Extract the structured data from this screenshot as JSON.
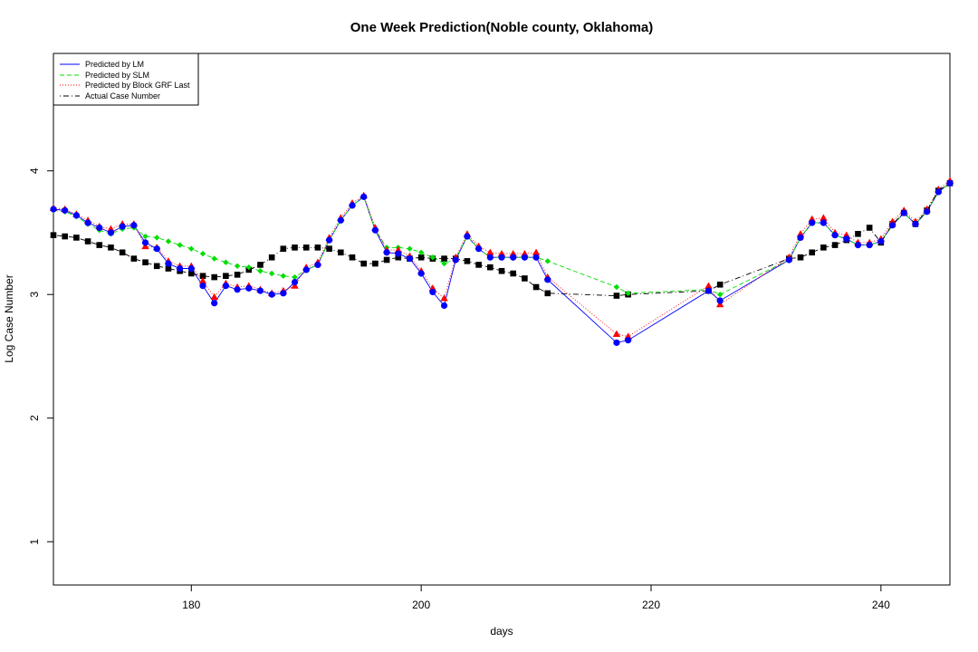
{
  "chart_data": {
    "type": "line",
    "title": "One Week Prediction(Noble county, Oklahoma)",
    "xlabel": "days",
    "ylabel": "Log Case Number",
    "xlim": [
      168,
      246
    ],
    "ylim": [
      0.65,
      4.95
    ],
    "xticks": [
      180,
      200,
      220,
      240
    ],
    "yticks": [
      1,
      2,
      3,
      4
    ],
    "grid": false,
    "legend_position": "top-left",
    "colors": {
      "lm": "#0000ff",
      "slm": "#00dd00",
      "grf": "#ff0000",
      "actual": "#000000"
    },
    "series": [
      {
        "name": "Predicted by LM",
        "style": "solid",
        "marker": "circle",
        "x": [
          168,
          169,
          170,
          171,
          172,
          173,
          174,
          175,
          176,
          177,
          178,
          179,
          180,
          181,
          182,
          183,
          184,
          185,
          186,
          187,
          188,
          189,
          190,
          191,
          192,
          193,
          194,
          195,
          196,
          197,
          198,
          199,
          200,
          201,
          202,
          203,
          204,
          205,
          206,
          207,
          208,
          209,
          210,
          211,
          217,
          218,
          225,
          226,
          232,
          233,
          234,
          235,
          236,
          237,
          238,
          239,
          240,
          241,
          242,
          243,
          244,
          245,
          246
        ],
        "values": [
          3.69,
          3.68,
          3.64,
          3.58,
          3.54,
          3.5,
          3.55,
          3.56,
          3.42,
          3.37,
          3.25,
          3.21,
          3.21,
          3.07,
          2.93,
          3.07,
          3.04,
          3.05,
          3.03,
          3.0,
          3.01,
          3.1,
          3.2,
          3.24,
          3.44,
          3.6,
          3.72,
          3.79,
          3.52,
          3.34,
          3.33,
          3.29,
          3.17,
          3.02,
          2.91,
          3.28,
          3.47,
          3.37,
          3.3,
          3.3,
          3.3,
          3.3,
          3.3,
          3.12,
          2.61,
          2.63,
          3.03,
          2.95,
          3.28,
          3.46,
          3.58,
          3.58,
          3.48,
          3.45,
          3.4,
          3.4,
          3.43,
          3.56,
          3.66,
          3.57,
          3.67,
          3.83,
          3.9
        ]
      },
      {
        "name": "Predicted by SLM",
        "style": "dashed",
        "marker": "diamond",
        "x": [
          168,
          169,
          170,
          171,
          172,
          173,
          174,
          175,
          176,
          177,
          178,
          179,
          180,
          181,
          182,
          183,
          184,
          185,
          186,
          187,
          188,
          189,
          190,
          191,
          192,
          193,
          194,
          195,
          196,
          197,
          198,
          199,
          200,
          201,
          202,
          203,
          204,
          205,
          206,
          207,
          208,
          209,
          210,
          211,
          217,
          218,
          225,
          226,
          232,
          233,
          234,
          235,
          236,
          237,
          238,
          239,
          240,
          241,
          242,
          243,
          244,
          245,
          246
        ],
        "values": [
          3.68,
          3.67,
          3.63,
          3.57,
          3.52,
          3.49,
          3.53,
          3.54,
          3.47,
          3.46,
          3.43,
          3.4,
          3.37,
          3.33,
          3.29,
          3.26,
          3.23,
          3.22,
          3.19,
          3.17,
          3.15,
          3.14,
          3.2,
          3.24,
          3.44,
          3.6,
          3.72,
          3.79,
          3.52,
          3.38,
          3.38,
          3.37,
          3.34,
          3.3,
          3.25,
          3.29,
          3.47,
          3.37,
          3.3,
          3.3,
          3.3,
          3.3,
          3.3,
          3.27,
          3.06,
          3.01,
          3.04,
          3.0,
          3.28,
          3.46,
          3.58,
          3.58,
          3.48,
          3.45,
          3.4,
          3.4,
          3.43,
          3.56,
          3.66,
          3.57,
          3.67,
          3.83,
          3.9
        ]
      },
      {
        "name": "Predicted by Block GRF Last",
        "style": "dotted",
        "marker": "triangle",
        "x": [
          168,
          169,
          170,
          171,
          172,
          173,
          174,
          175,
          176,
          177,
          178,
          179,
          180,
          181,
          182,
          183,
          184,
          185,
          186,
          187,
          188,
          189,
          190,
          191,
          192,
          193,
          194,
          195,
          196,
          197,
          198,
          199,
          200,
          201,
          202,
          203,
          204,
          205,
          206,
          207,
          208,
          209,
          210,
          211,
          217,
          218,
          225,
          226,
          232,
          233,
          234,
          235,
          236,
          237,
          238,
          239,
          240,
          241,
          242,
          243,
          244,
          245,
          246
        ],
        "values": [
          3.7,
          3.69,
          3.65,
          3.6,
          3.55,
          3.53,
          3.57,
          3.57,
          3.39,
          3.38,
          3.27,
          3.23,
          3.23,
          3.11,
          2.98,
          3.09,
          3.06,
          3.07,
          3.04,
          3.01,
          3.03,
          3.07,
          3.22,
          3.26,
          3.46,
          3.62,
          3.74,
          3.8,
          3.54,
          3.36,
          3.36,
          3.31,
          3.19,
          3.05,
          2.97,
          3.3,
          3.49,
          3.39,
          3.34,
          3.33,
          3.33,
          3.33,
          3.34,
          3.14,
          2.68,
          2.66,
          3.07,
          2.92,
          3.3,
          3.49,
          3.61,
          3.62,
          3.5,
          3.48,
          3.42,
          3.42,
          3.45,
          3.59,
          3.68,
          3.59,
          3.69,
          3.85,
          3.92
        ]
      },
      {
        "name": "Actual Case Number",
        "style": "dotdash",
        "marker": "square",
        "x": [
          168,
          169,
          170,
          171,
          172,
          173,
          174,
          175,
          176,
          177,
          178,
          179,
          180,
          181,
          182,
          183,
          184,
          185,
          186,
          187,
          188,
          189,
          190,
          191,
          192,
          193,
          194,
          195,
          196,
          197,
          198,
          199,
          200,
          201,
          202,
          203,
          204,
          205,
          206,
          207,
          208,
          209,
          210,
          211,
          217,
          218,
          225,
          226,
          232,
          233,
          234,
          235,
          236,
          237,
          238,
          239,
          240,
          241,
          242,
          243,
          244,
          245,
          246
        ],
        "values": [
          3.48,
          3.47,
          3.46,
          3.43,
          3.4,
          3.38,
          3.34,
          3.29,
          3.26,
          3.23,
          3.21,
          3.19,
          3.17,
          3.15,
          3.14,
          3.15,
          3.16,
          3.2,
          3.24,
          3.3,
          3.37,
          3.38,
          3.38,
          3.38,
          3.37,
          3.34,
          3.3,
          3.25,
          3.25,
          3.28,
          3.3,
          3.29,
          3.3,
          3.29,
          3.29,
          3.29,
          3.27,
          3.24,
          3.22,
          3.19,
          3.17,
          3.13,
          3.06,
          3.01,
          2.99,
          3.0,
          3.03,
          3.08,
          3.29,
          3.3,
          3.34,
          3.38,
          3.4,
          3.44,
          3.49,
          3.54,
          3.42,
          3.57,
          3.66,
          3.57,
          3.68,
          3.84,
          3.9
        ]
      }
    ]
  }
}
